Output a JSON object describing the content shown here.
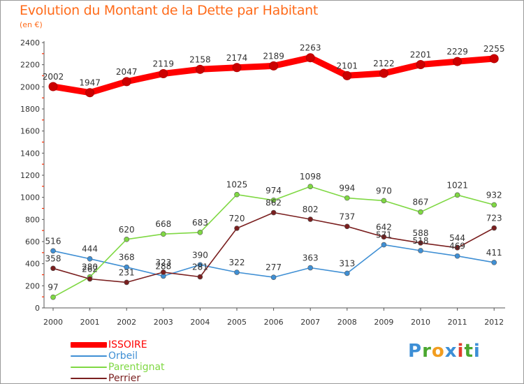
{
  "title": "Evolution du Montant de la Dette par Habitant",
  "unit": "(en €)",
  "brand": {
    "letters": [
      "P",
      "r",
      "o",
      "x",
      "i",
      "t",
      "i"
    ],
    "colors": [
      "#3d8fd6",
      "#4aa72f",
      "#f29d1f",
      "#3d8fd6",
      "#e23c2c",
      "#4aa72f",
      "#3d8fd6"
    ]
  },
  "colors": {
    "title": "#ff6b1a",
    "axis": "#555555",
    "tick_mark": "#ff2a00",
    "grid": "#e6e6e6"
  },
  "chart_data": {
    "type": "line",
    "title": "Evolution du Montant de la Dette par Habitant",
    "subtitle": "(en €)",
    "xlabel": "",
    "ylabel": "",
    "categories": [
      "2000",
      "2001",
      "2002",
      "2003",
      "2004",
      "2005",
      "2006",
      "2007",
      "2008",
      "2009",
      "2010",
      "2011",
      "2012"
    ],
    "ylim": [
      0,
      2400
    ],
    "yticks": [
      0,
      200,
      400,
      600,
      800,
      1000,
      1200,
      1400,
      1600,
      1800,
      2000,
      2200,
      2400
    ],
    "grid": false,
    "legend": "bottom-left",
    "series": [
      {
        "name": "ISSOIRE",
        "color": "#ff0000",
        "values": [
          2002,
          1947,
          2047,
          2119,
          2158,
          2174,
          2189,
          2263,
          2101,
          2122,
          2201,
          2229,
          2255
        ]
      },
      {
        "name": "Orbeil",
        "color": "#3f8fd4",
        "values": [
          516,
          444,
          368,
          288,
          390,
          322,
          277,
          363,
          313,
          571,
          518,
          469,
          411
        ]
      },
      {
        "name": "Parentignat",
        "color": "#7fd843",
        "values": [
          97,
          280,
          620,
          668,
          683,
          1025,
          974,
          1098,
          994,
          970,
          867,
          1021,
          932
        ]
      },
      {
        "name": "Perrier",
        "color": "#7a1f1f",
        "values": [
          358,
          262,
          231,
          323,
          281,
          720,
          862,
          802,
          737,
          642,
          588,
          544,
          723
        ]
      }
    ]
  }
}
